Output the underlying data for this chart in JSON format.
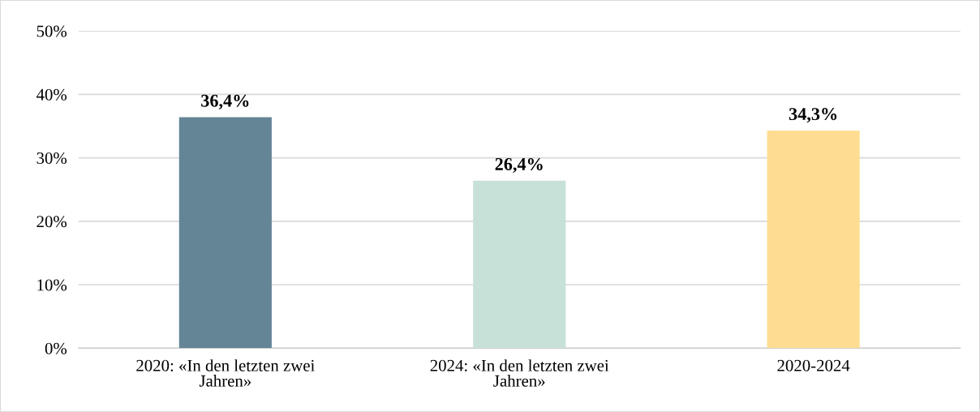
{
  "chart_data": {
    "type": "bar",
    "categories": [
      "2020: «In den letzten zwei Jahren»",
      "2024: «In den letzten zwei Jahren»",
      "2020-2024"
    ],
    "values": [
      36.4,
      26.4,
      34.3
    ],
    "colors": [
      "#648596",
      "#c7e1d9",
      "#fedd92"
    ],
    "value_labels": [
      "36,4%",
      "26,4%",
      "34,3%"
    ],
    "ylim": [
      0,
      50
    ],
    "yticks": [
      {
        "value": 0,
        "label": "0%"
      },
      {
        "value": 10,
        "label": "10%"
      },
      {
        "value": 20,
        "label": "20%"
      },
      {
        "value": 30,
        "label": "30%"
      },
      {
        "value": 40,
        "label": "40%"
      },
      {
        "value": 50,
        "label": "50%"
      }
    ],
    "grid": "y"
  }
}
